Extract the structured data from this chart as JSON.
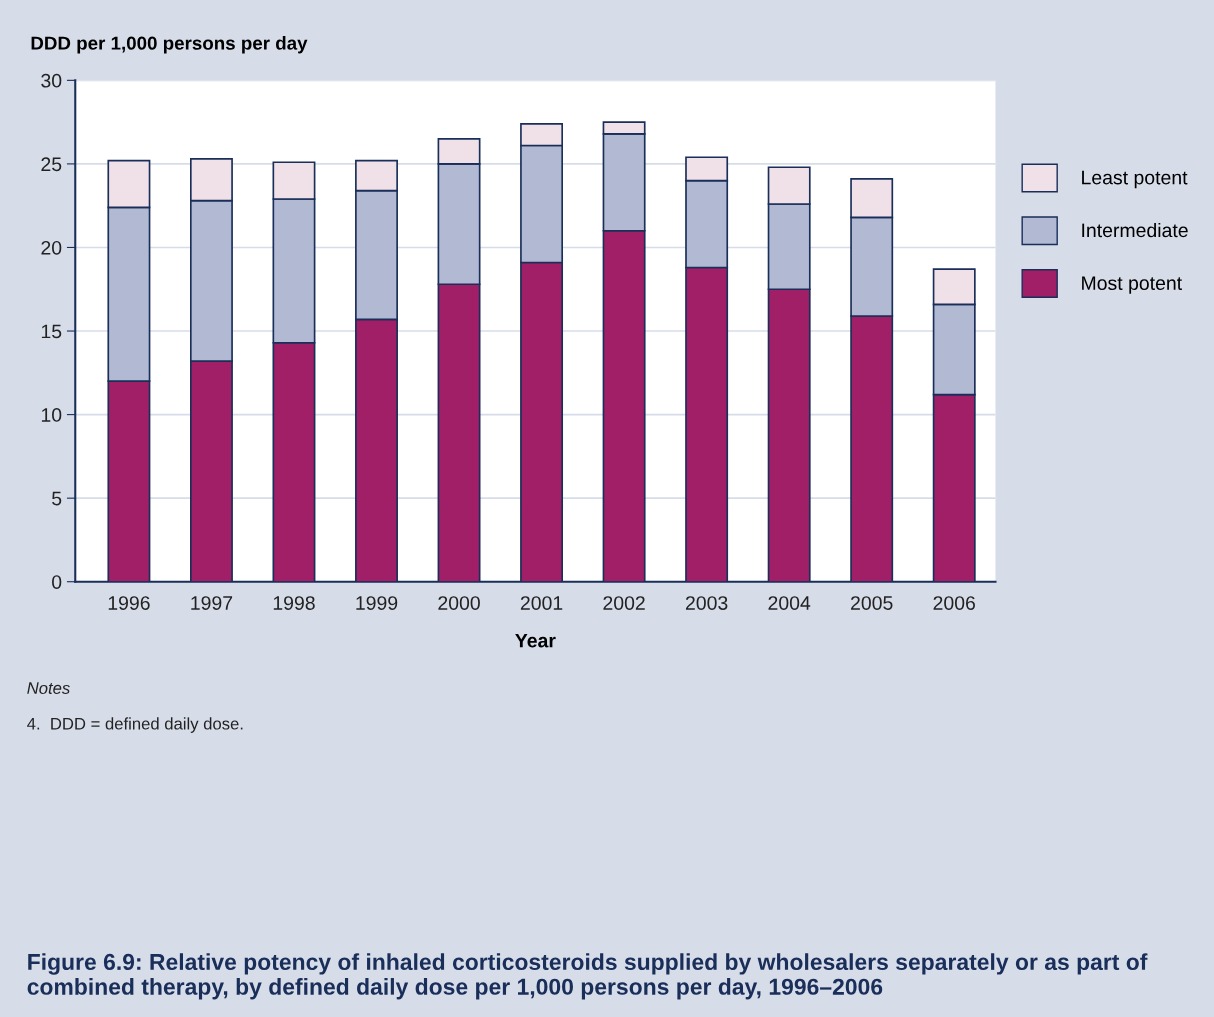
{
  "chart_data": {
    "type": "bar",
    "stacked": true,
    "title": "Figure 6.9: Relative potency of inhaled corticosteroids supplied by wholesalers separately or as part of combined therapy, by defined daily dose per 1,000 persons per day, 1996–2006",
    "ylabel": "DDD per 1,000 persons per day",
    "xlabel": "Year",
    "categories": [
      "1996",
      "1997",
      "1998",
      "1999",
      "2000",
      "2001",
      "2002",
      "2003",
      "2004",
      "2005",
      "2006"
    ],
    "series": [
      {
        "name": "Most potent",
        "color": "#a01f66",
        "values": [
          12.0,
          13.2,
          14.3,
          15.7,
          17.8,
          19.1,
          21.0,
          18.8,
          17.5,
          15.9,
          11.2
        ]
      },
      {
        "name": "Intermediate",
        "color": "#b1b9d3",
        "values": [
          10.4,
          9.6,
          8.6,
          7.7,
          7.2,
          7.0,
          5.8,
          5.2,
          5.1,
          5.9,
          5.4
        ]
      },
      {
        "name": "Least potent",
        "color": "#f0e0e7",
        "values": [
          2.8,
          2.5,
          2.2,
          1.8,
          1.5,
          1.3,
          0.7,
          1.4,
          2.2,
          2.3,
          2.1
        ]
      }
    ],
    "ylim": [
      0,
      30
    ],
    "yticks": [
      0,
      5,
      10,
      15,
      20,
      25,
      30
    ],
    "grid": "y",
    "legend": "right",
    "annotations": [
      "Notes",
      "4.  DDD = defined daily dose."
    ]
  }
}
